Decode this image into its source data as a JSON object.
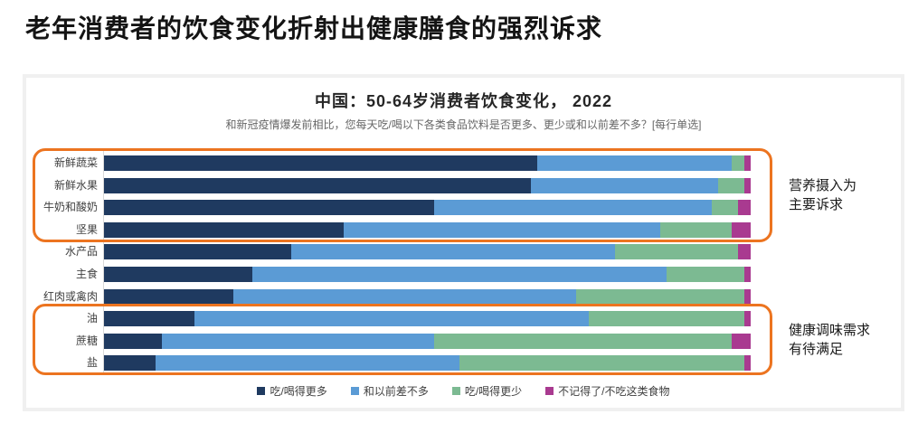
{
  "page": {
    "title": "老年消费者的饮食变化折射出健康膳食的强烈诉求"
  },
  "panel": {
    "title": "中国：50-64岁消费者饮食变化， 2022",
    "subtitle": "和新冠疫情爆发前相比，您每天吃/喝以下各类食品饮料是否更多、更少或和以前差不多？[每行单选]"
  },
  "annotations": [
    {
      "text": "营养摄入为\n主要诉求",
      "row_from": 0,
      "row_to": 3
    },
    {
      "text": "健康调味需求\n有待满足",
      "row_from": 7,
      "row_to": 9
    }
  ],
  "colors": {
    "highlight_box": "#EC7420",
    "panel_border": "#F0F0F0",
    "series_more": "#1F3A60",
    "series_same": "#5B9BD5",
    "series_less": "#7CBA92",
    "series_other": "#A93A90"
  },
  "chart_data": {
    "type": "bar",
    "orientation": "horizontal",
    "stacked": true,
    "unit": "%",
    "title": "中国：50-64岁消费者饮食变化， 2022",
    "subtitle": "和新冠疫情爆发前相比，您每天吃/喝以下各类食品饮料是否更多、更少或和以前差不多？[每行单选]",
    "categories": [
      "新鲜蔬菜",
      "新鲜水果",
      "牛奶和酸奶",
      "坚果",
      "水产品",
      "主食",
      "红肉或禽肉",
      "油",
      "蔗糖",
      "盐"
    ],
    "series": [
      {
        "name": "吃/喝得更多",
        "color": "#1F3A60",
        "values": [
          67,
          66,
          51,
          37,
          29,
          23,
          20,
          14,
          9,
          8
        ]
      },
      {
        "name": "和以前差不多",
        "color": "#5B9BD5",
        "values": [
          30,
          29,
          43,
          49,
          50,
          64,
          53,
          61,
          42,
          47
        ]
      },
      {
        "name": "吃/喝得更少",
        "color": "#7CBA92",
        "values": [
          2,
          4,
          4,
          11,
          19,
          12,
          26,
          24,
          46,
          44
        ]
      },
      {
        "name": "不记得了/不吃这类食物",
        "color": "#A93A90",
        "values": [
          1,
          1,
          2,
          3,
          2,
          1,
          1,
          1,
          3,
          1
        ]
      }
    ],
    "xlim": [
      0,
      100
    ],
    "grid": false,
    "legend_position": "bottom",
    "value_labels": false
  }
}
